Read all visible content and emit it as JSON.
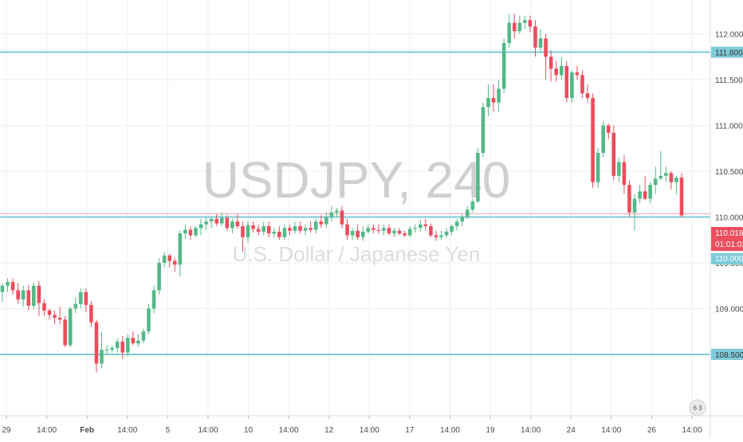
{
  "watermark": {
    "symbol_interval": "USDJPY, 240",
    "description": "U.S. Dollar / Japanese Yen"
  },
  "price_tag": {
    "price": "110.018",
    "countdown": "01:01:02"
  },
  "level_badge": "110.000",
  "logo_text": "6 3",
  "colors": {
    "up": "#53b987",
    "down": "#eb4d5c",
    "level_line": "#7ecbd8",
    "last_price": "#e8a0a6",
    "grid": "#eeeeee",
    "label_bg": "#7ecbd8"
  },
  "chart_data": {
    "type": "candlestick",
    "symbol": "USDJPY",
    "interval": "240",
    "title": "USDJPY, 240",
    "subtitle": "U.S. Dollar / Japanese Yen",
    "ylim": [
      107.83,
      112.37
    ],
    "y_ticks": [
      "112.000",
      "111.500",
      "111.000",
      "110.500",
      "110.000",
      "109.500",
      "109.000",
      "108.500"
    ],
    "x_ticks": [
      "29",
      "14:00",
      "Feb",
      "14:00",
      "5",
      "14:00",
      "10",
      "14:00",
      "12",
      "14:00",
      "17",
      "14:00",
      "19",
      "14:00",
      "24",
      "14:00",
      "26",
      "14:00"
    ],
    "horizontal_levels": [
      111.8,
      110.0,
      108.5
    ],
    "last_price": 110.018,
    "grid": true,
    "candles": [
      [
        109.18,
        109.28,
        109.07,
        109.25
      ],
      [
        109.25,
        109.33,
        109.18,
        109.29
      ],
      [
        109.29,
        109.33,
        109.15,
        109.2
      ],
      [
        109.2,
        109.28,
        109.05,
        109.1
      ],
      [
        109.1,
        109.25,
        109.02,
        109.2
      ],
      [
        109.2,
        109.26,
        108.98,
        109.03
      ],
      [
        109.03,
        109.28,
        108.99,
        109.25
      ],
      [
        109.25,
        109.3,
        108.92,
        109.06
      ],
      [
        109.06,
        109.1,
        108.92,
        108.98
      ],
      [
        108.98,
        109.0,
        108.88,
        108.93
      ],
      [
        108.93,
        108.98,
        108.83,
        108.9
      ],
      [
        108.9,
        109.02,
        108.83,
        108.88
      ],
      [
        108.88,
        108.92,
        108.58,
        108.6
      ],
      [
        108.6,
        109.02,
        108.58,
        109.0
      ],
      [
        109.0,
        109.12,
        108.95,
        109.05
      ],
      [
        109.05,
        109.22,
        109.0,
        109.18
      ],
      [
        109.18,
        109.22,
        108.96,
        109.04
      ],
      [
        109.04,
        109.08,
        108.8,
        108.85
      ],
      [
        108.85,
        108.88,
        108.3,
        108.4
      ],
      [
        108.4,
        108.75,
        108.35,
        108.55
      ],
      [
        108.55,
        108.6,
        108.5,
        108.55
      ],
      [
        108.55,
        108.6,
        108.52,
        108.57
      ],
      [
        108.57,
        108.68,
        108.52,
        108.64
      ],
      [
        108.64,
        108.7,
        108.45,
        108.52
      ],
      [
        108.52,
        108.72,
        108.48,
        108.68
      ],
      [
        108.68,
        108.75,
        108.6,
        108.62
      ],
      [
        108.62,
        108.72,
        108.58,
        108.65
      ],
      [
        108.65,
        108.78,
        108.62,
        108.75
      ],
      [
        108.75,
        109.05,
        108.72,
        109.0
      ],
      [
        109.0,
        109.25,
        108.95,
        109.2
      ],
      [
        109.2,
        109.55,
        109.15,
        109.5
      ],
      [
        109.5,
        109.62,
        109.45,
        109.58
      ],
      [
        109.58,
        109.6,
        109.45,
        109.52
      ],
      [
        109.52,
        109.55,
        109.4,
        109.48
      ],
      [
        109.48,
        109.85,
        109.35,
        109.82
      ],
      [
        109.82,
        109.92,
        109.76,
        109.86
      ],
      [
        109.86,
        109.9,
        109.75,
        109.8
      ],
      [
        109.8,
        109.9,
        109.78,
        109.88
      ],
      [
        109.88,
        109.98,
        109.8,
        109.92
      ],
      [
        109.92,
        110.0,
        109.86,
        109.95
      ],
      [
        109.95,
        110.0,
        109.88,
        109.98
      ],
      [
        109.98,
        110.03,
        109.9,
        109.93
      ],
      [
        109.93,
        110.05,
        109.9,
        109.99
      ],
      [
        109.99,
        110.02,
        109.85,
        109.88
      ],
      [
        109.88,
        109.98,
        109.82,
        109.95
      ],
      [
        109.95,
        110.03,
        109.87,
        109.9
      ],
      [
        109.9,
        109.95,
        109.62,
        109.78
      ],
      [
        109.78,
        109.95,
        109.72,
        109.91
      ],
      [
        109.91,
        109.95,
        109.83,
        109.87
      ],
      [
        109.87,
        109.92,
        109.8,
        109.84
      ],
      [
        109.84,
        109.95,
        109.8,
        109.9
      ],
      [
        109.9,
        109.95,
        109.78,
        109.82
      ],
      [
        109.82,
        109.88,
        109.78,
        109.84
      ],
      [
        109.84,
        109.9,
        109.75,
        109.78
      ],
      [
        109.78,
        109.92,
        109.75,
        109.88
      ],
      [
        109.88,
        109.92,
        109.8,
        109.85
      ],
      [
        109.85,
        109.95,
        109.82,
        109.9
      ],
      [
        109.9,
        109.95,
        109.82,
        109.85
      ],
      [
        109.85,
        109.92,
        109.8,
        109.88
      ],
      [
        109.88,
        109.95,
        109.83,
        109.86
      ],
      [
        109.86,
        109.98,
        109.82,
        109.95
      ],
      [
        109.95,
        110.02,
        109.88,
        109.92
      ],
      [
        109.92,
        110.05,
        109.88,
        110.0
      ],
      [
        110.0,
        110.12,
        109.95,
        110.05
      ],
      [
        110.05,
        110.1,
        110.0,
        110.07
      ],
      [
        110.07,
        110.12,
        109.88,
        109.92
      ],
      [
        109.92,
        109.98,
        109.75,
        109.8
      ],
      [
        109.8,
        109.88,
        109.75,
        109.85
      ],
      [
        109.85,
        109.92,
        109.75,
        109.78
      ],
      [
        109.78,
        109.9,
        109.74,
        109.84
      ],
      [
        109.84,
        109.92,
        109.82,
        109.88
      ],
      [
        109.88,
        109.92,
        109.82,
        109.86
      ],
      [
        109.86,
        109.92,
        109.82,
        109.85
      ],
      [
        109.85,
        109.92,
        109.8,
        109.88
      ],
      [
        109.88,
        109.92,
        109.8,
        109.82
      ],
      [
        109.82,
        109.88,
        109.78,
        109.85
      ],
      [
        109.85,
        109.88,
        109.8,
        109.82
      ],
      [
        109.82,
        109.85,
        109.78,
        109.8
      ],
      [
        109.8,
        109.9,
        109.78,
        109.87
      ],
      [
        109.87,
        109.92,
        109.83,
        109.88
      ],
      [
        109.88,
        109.97,
        109.84,
        109.92
      ],
      [
        109.92,
        109.98,
        109.85,
        109.9
      ],
      [
        109.9,
        109.93,
        109.78,
        109.8
      ],
      [
        109.8,
        109.85,
        109.74,
        109.78
      ],
      [
        109.78,
        109.85,
        109.75,
        109.8
      ],
      [
        109.8,
        109.88,
        109.77,
        109.84
      ],
      [
        109.84,
        109.92,
        109.8,
        109.9
      ],
      [
        109.9,
        109.98,
        109.85,
        109.95
      ],
      [
        109.95,
        110.03,
        109.9,
        110.0
      ],
      [
        110.0,
        110.12,
        109.98,
        110.08
      ],
      [
        110.08,
        110.2,
        110.05,
        110.17
      ],
      [
        110.17,
        110.75,
        110.15,
        110.7
      ],
      [
        110.7,
        111.25,
        110.65,
        111.2
      ],
      [
        111.2,
        111.45,
        111.1,
        111.3
      ],
      [
        111.3,
        111.45,
        111.15,
        111.25
      ],
      [
        111.25,
        111.5,
        111.15,
        111.4
      ],
      [
        111.4,
        111.95,
        111.35,
        111.9
      ],
      [
        111.9,
        112.22,
        111.85,
        112.12
      ],
      [
        112.12,
        112.22,
        111.95,
        112.03
      ],
      [
        112.03,
        112.2,
        112.0,
        112.12
      ],
      [
        112.12,
        112.2,
        112.05,
        112.15
      ],
      [
        112.15,
        112.2,
        112.02,
        112.08
      ],
      [
        112.08,
        112.15,
        111.75,
        111.85
      ],
      [
        111.85,
        112.05,
        111.8,
        111.95
      ],
      [
        111.95,
        112.0,
        111.5,
        111.75
      ],
      [
        111.75,
        111.82,
        111.48,
        111.62
      ],
      [
        111.62,
        111.7,
        111.48,
        111.55
      ],
      [
        111.55,
        111.75,
        111.5,
        111.65
      ],
      [
        111.65,
        111.7,
        111.25,
        111.3
      ],
      [
        111.3,
        111.6,
        111.25,
        111.58
      ],
      [
        111.58,
        111.65,
        111.5,
        111.55
      ],
      [
        111.55,
        111.6,
        111.3,
        111.35
      ],
      [
        111.35,
        111.45,
        111.25,
        111.3
      ],
      [
        111.3,
        111.35,
        110.32,
        110.38
      ],
      [
        110.38,
        110.75,
        110.32,
        110.7
      ],
      [
        110.7,
        111.05,
        110.65,
        111.0
      ],
      [
        111.0,
        111.02,
        110.85,
        110.92
      ],
      [
        110.92,
        111.0,
        110.4,
        110.45
      ],
      [
        110.45,
        110.65,
        110.38,
        110.6
      ],
      [
        110.6,
        110.68,
        110.25,
        110.35
      ],
      [
        110.35,
        110.4,
        110.0,
        110.05
      ],
      [
        110.05,
        110.25,
        109.85,
        110.2
      ],
      [
        110.2,
        110.35,
        110.15,
        110.28
      ],
      [
        110.28,
        110.45,
        110.18,
        110.2
      ],
      [
        110.2,
        110.38,
        110.15,
        110.35
      ],
      [
        110.35,
        110.55,
        110.25,
        110.42
      ],
      [
        110.42,
        110.72,
        110.4,
        110.45
      ],
      [
        110.45,
        110.55,
        110.38,
        110.48
      ],
      [
        110.48,
        110.5,
        110.3,
        110.38
      ],
      [
        110.38,
        110.45,
        110.25,
        110.43
      ],
      [
        110.43,
        110.48,
        110.0,
        110.018
      ]
    ]
  }
}
